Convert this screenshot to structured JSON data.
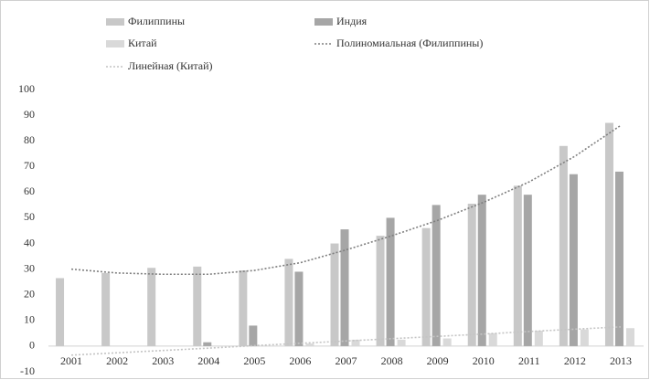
{
  "chart_data": {
    "type": "bar",
    "categories": [
      "2001",
      "2002",
      "2003",
      "2004",
      "2005",
      "2006",
      "2007",
      "2008",
      "2009",
      "2010",
      "2011",
      "2012",
      "2013"
    ],
    "series": [
      {
        "name": "Филиппины",
        "color": "#c8c8c8",
        "values": [
          26.5,
          28.5,
          30.5,
          31,
          29.5,
          34,
          40,
          43,
          46,
          55.5,
          62.5,
          78,
          87
        ]
      },
      {
        "name": "Индия",
        "color": "#a6a6a6",
        "values": [
          null,
          null,
          null,
          1.5,
          8,
          29,
          45.5,
          50,
          55,
          59,
          59,
          67,
          68
        ]
      },
      {
        "name": "Китай",
        "color": "#d9d9d9",
        "values": [
          null,
          null,
          null,
          null,
          null,
          1,
          2.5,
          2.5,
          3,
          5,
          6,
          6.5,
          7
        ]
      },
      {
        "name": "Полиномиальная (Филиппины)",
        "color": "#7f7f7f",
        "style": "trend",
        "values": [
          30,
          28.5,
          28,
          28,
          29.5,
          32.5,
          37.5,
          43,
          49,
          56,
          64,
          74,
          86
        ]
      },
      {
        "name": "Линейная (Китай)",
        "color": "#c4c4c4",
        "style": "trend",
        "values": [
          -3.5,
          -2.6,
          -1.7,
          -0.8,
          0.2,
          1.1,
          2,
          2.9,
          3.8,
          4.7,
          5.7,
          6.6,
          7.5
        ]
      }
    ],
    "ylim": [
      -10,
      100
    ],
    "yticks": [
      -10,
      0,
      10,
      20,
      30,
      40,
      50,
      60,
      70,
      80,
      90,
      100
    ],
    "grid": false
  }
}
